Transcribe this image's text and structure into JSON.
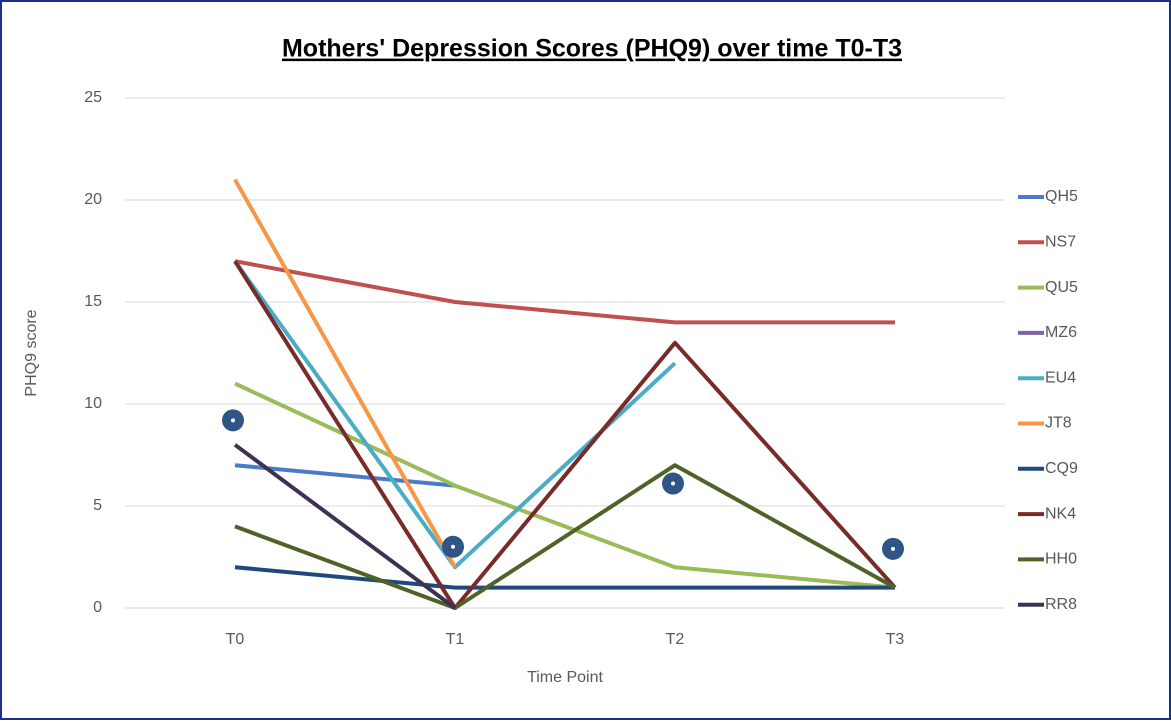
{
  "chart_data": {
    "type": "line",
    "title": "Mothers' Depression Scores (PHQ9) over time T0-T3",
    "x_label": "Time Point",
    "y_label": "PHQ9 score",
    "categories": [
      "T0",
      "T1",
      "T2",
      "T3"
    ],
    "ylim": [
      0,
      25
    ],
    "yticks": [
      0,
      5,
      10,
      15,
      20,
      25
    ],
    "grid": true,
    "legend": "right",
    "series": [
      {
        "name": "QH5",
        "color": "#4a7bc8",
        "values": [
          7,
          6,
          null,
          null
        ]
      },
      {
        "name": "NS7",
        "color": "#c0504d",
        "values": [
          17,
          15,
          14,
          14
        ]
      },
      {
        "name": "QU5",
        "color": "#9bbb59",
        "values": [
          11,
          6,
          2,
          1
        ]
      },
      {
        "name": "MZ6",
        "color": "#8064a2",
        "values": [
          null,
          null,
          null,
          null
        ]
      },
      {
        "name": "EU4",
        "color": "#4bacc6",
        "values": [
          17,
          2,
          12,
          null
        ]
      },
      {
        "name": "JT8",
        "color": "#f79646",
        "values": [
          21,
          2,
          null,
          null
        ]
      },
      {
        "name": "CQ9",
        "color": "#1f497d",
        "values": [
          2,
          1,
          1,
          1
        ]
      },
      {
        "name": "NK4",
        "color": "#772c2a",
        "values": [
          17,
          0,
          13,
          1
        ]
      },
      {
        "name": "HH0",
        "color": "#4f6228",
        "values": [
          4,
          0,
          7,
          1
        ]
      },
      {
        "name": "RR8",
        "color": "#3f3151",
        "values": [
          8,
          0,
          null,
          null
        ]
      }
    ],
    "markers": {
      "color": "#2f5587",
      "values": [
        9.2,
        3,
        6.1,
        2.9
      ]
    }
  }
}
